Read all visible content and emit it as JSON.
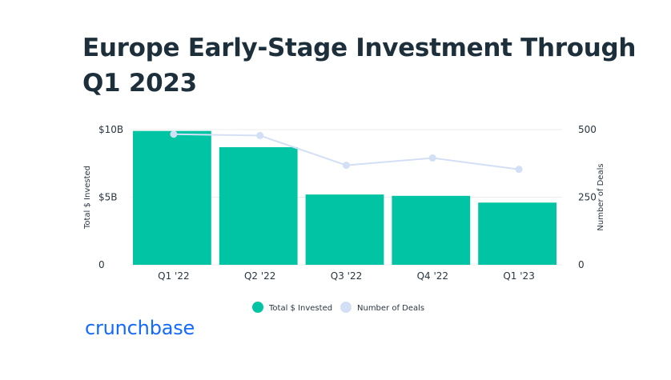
{
  "title": "Europe Early-Stage Investment Through Q1 2023",
  "logo_text": "crunchbase",
  "colors": {
    "bar": "#00c4a3",
    "line": "#d3dff5",
    "text": "#1e2f3c",
    "grid": "#ececec",
    "brand": "#146aff"
  },
  "chart_data": {
    "type": "bar+line",
    "categories": [
      "Q1 '22",
      "Q2 '22",
      "Q3 '22",
      "Q4 '22",
      "Q1 '23"
    ],
    "series": [
      {
        "name": "Total $ Invested",
        "type": "bar",
        "axis": "left",
        "values": [
          9.9,
          8.7,
          5.2,
          5.1,
          4.6
        ]
      },
      {
        "name": "Number of Deals",
        "type": "line",
        "axis": "right",
        "values": [
          483,
          478,
          368,
          395,
          353
        ]
      }
    ],
    "y_left": {
      "label": "Total $ Invested",
      "range": [
        0,
        10
      ],
      "ticks": [
        0,
        5,
        10
      ],
      "tick_labels": [
        "0",
        "$5B",
        "$10B"
      ]
    },
    "y_right": {
      "label": "Number of Deals",
      "range": [
        0,
        500
      ],
      "ticks": [
        0,
        250,
        500
      ],
      "tick_labels": [
        "0",
        "250",
        "500"
      ]
    },
    "grid": true,
    "legend_position": "bottom-center"
  }
}
